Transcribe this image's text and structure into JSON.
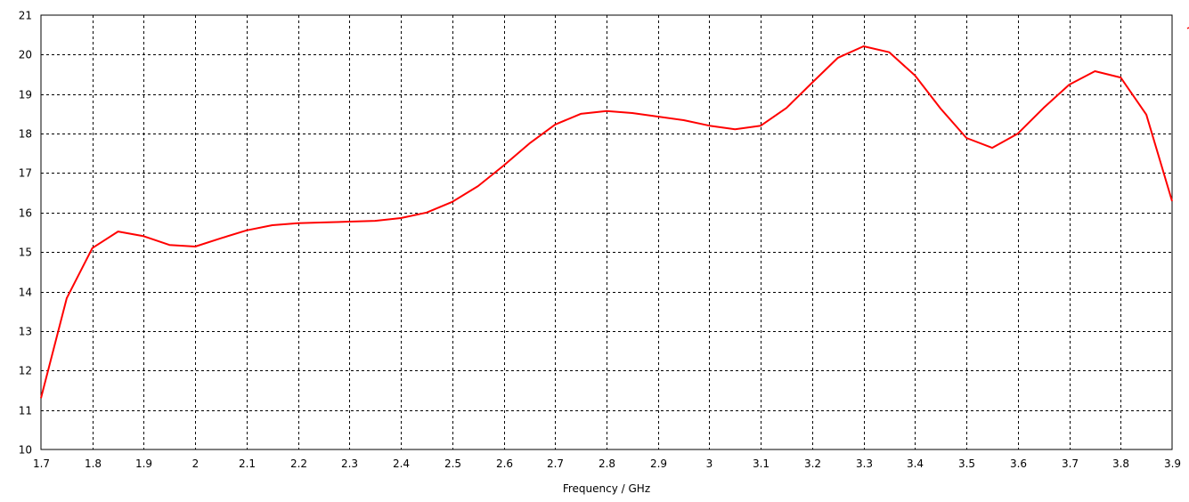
{
  "chart_data": {
    "type": "line",
    "title": "",
    "xlabel": "Frequency / GHz",
    "ylabel": "",
    "xlim": [
      1.7,
      3.9
    ],
    "ylim": [
      10,
      21
    ],
    "xticks": [
      "1.7",
      "1.8",
      "1.9",
      "2",
      "2.1",
      "2.2",
      "2.3",
      "2.4",
      "2.5",
      "2.6",
      "2.7",
      "2.8",
      "2.9",
      "3",
      "3.1",
      "3.2",
      "3.3",
      "3.4",
      "3.5",
      "3.6",
      "3.7",
      "3.8",
      "3.9"
    ],
    "yticks": [
      "10",
      "11",
      "12",
      "13",
      "14",
      "15",
      "16",
      "17",
      "18",
      "19",
      "20",
      "21"
    ],
    "grid": true,
    "grid_style": "dashed",
    "series": [
      {
        "color": "#ff0000",
        "x": [
          1.7,
          1.75,
          1.8,
          1.85,
          1.9,
          1.95,
          2.0,
          2.05,
          2.1,
          2.15,
          2.2,
          2.25,
          2.3,
          2.35,
          2.4,
          2.45,
          2.5,
          2.55,
          2.6,
          2.65,
          2.7,
          2.75,
          2.8,
          2.85,
          2.9,
          2.95,
          3.0,
          3.05,
          3.1,
          3.15,
          3.2,
          3.25,
          3.3,
          3.35,
          3.4,
          3.45,
          3.5,
          3.55,
          3.6,
          3.65,
          3.7,
          3.75,
          3.8,
          3.85,
          3.9
        ],
        "y": [
          11.3,
          13.83,
          15.1,
          15.52,
          15.4,
          15.18,
          15.14,
          15.35,
          15.55,
          15.68,
          15.73,
          15.75,
          15.77,
          15.79,
          15.86,
          16.0,
          16.27,
          16.67,
          17.19,
          17.75,
          18.23,
          18.5,
          18.57,
          18.52,
          18.43,
          18.34,
          18.2,
          18.11,
          18.2,
          18.65,
          19.29,
          19.92,
          20.21,
          20.06,
          19.47,
          18.63,
          17.89,
          17.64,
          18.0,
          18.65,
          19.24,
          19.58,
          19.42,
          18.48,
          16.29
        ]
      }
    ]
  }
}
